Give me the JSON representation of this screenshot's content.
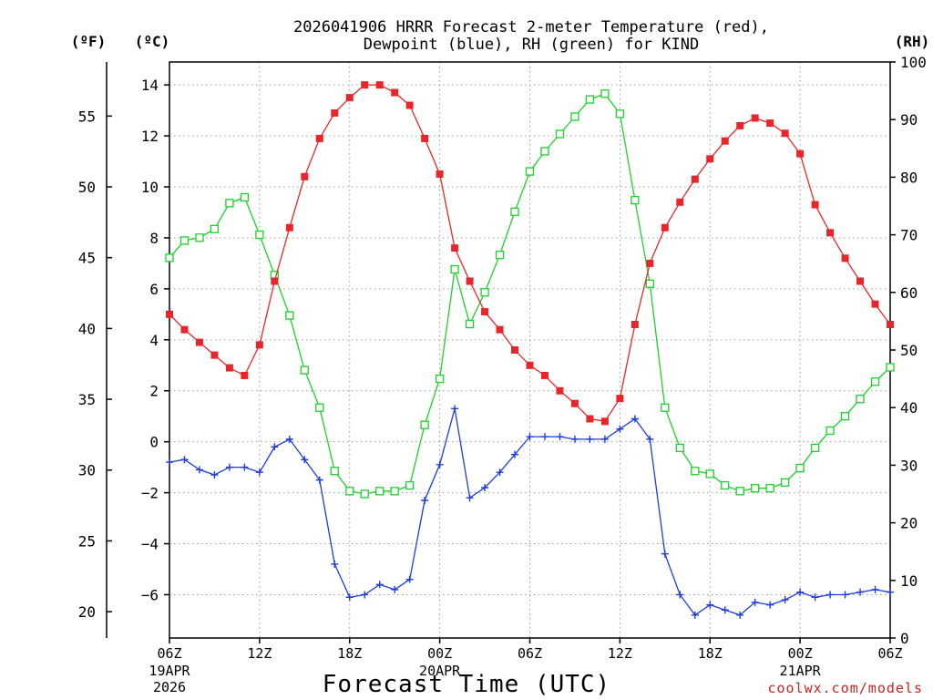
{
  "chart_data": {
    "type": "line",
    "title_lines": [
      "2026041906 HRRR Forecast 2-meter Temperature (red),",
      "Dewpoint (blue), RH (green) for KIND"
    ],
    "xlabel": "Forecast Time (UTC)",
    "credit": "coolwx.com/models",
    "units": {
      "fahrenheit": "(ºF)",
      "celsius": "(ºC)",
      "rh": "(RH)"
    },
    "x_range_hours": [
      0,
      48
    ],
    "x_ticks": [
      {
        "hour": 0,
        "label": "06Z",
        "date": [
          "19APR",
          "2026"
        ]
      },
      {
        "hour": 6,
        "label": "12Z",
        "date": []
      },
      {
        "hour": 12,
        "label": "18Z",
        "date": []
      },
      {
        "hour": 18,
        "label": "00Z",
        "date": [
          "20APR"
        ]
      },
      {
        "hour": 24,
        "label": "06Z",
        "date": []
      },
      {
        "hour": 30,
        "label": "12Z",
        "date": []
      },
      {
        "hour": 36,
        "label": "18Z",
        "date": []
      },
      {
        "hour": 42,
        "label": "00Z",
        "date": [
          "21APR"
        ]
      },
      {
        "hour": 48,
        "label": "06Z",
        "date": []
      }
    ],
    "c_range": [
      -7.7,
      14.9
    ],
    "c_ticks": [
      {
        "value": -6,
        "label": "−6"
      },
      {
        "value": -4,
        "label": "−4"
      },
      {
        "value": -2,
        "label": "−2"
      },
      {
        "value": 0,
        "label": "0"
      },
      {
        "value": 2,
        "label": "2"
      },
      {
        "value": 4,
        "label": "4"
      },
      {
        "value": 6,
        "label": "6"
      },
      {
        "value": 8,
        "label": "8"
      },
      {
        "value": 10,
        "label": "10"
      },
      {
        "value": 12,
        "label": "12"
      },
      {
        "value": 14,
        "label": "14"
      }
    ],
    "f_ticks": [
      {
        "value": 20,
        "label": "20"
      },
      {
        "value": 25,
        "label": "25"
      },
      {
        "value": 30,
        "label": "30"
      },
      {
        "value": 35,
        "label": "35"
      },
      {
        "value": 40,
        "label": "40"
      },
      {
        "value": 45,
        "label": "45"
      },
      {
        "value": 50,
        "label": "50"
      },
      {
        "value": 55,
        "label": "55"
      }
    ],
    "rh_range": [
      0,
      100
    ],
    "rh_ticks": [
      {
        "value": 0,
        "label": "0"
      },
      {
        "value": 10,
        "label": "10"
      },
      {
        "value": 20,
        "label": "20"
      },
      {
        "value": 30,
        "label": "30"
      },
      {
        "value": 40,
        "label": "40"
      },
      {
        "value": 50,
        "label": "50"
      },
      {
        "value": 60,
        "label": "60"
      },
      {
        "value": 70,
        "label": "70"
      },
      {
        "value": 80,
        "label": "80"
      },
      {
        "value": 90,
        "label": "90"
      },
      {
        "value": 100,
        "label": "100"
      }
    ],
    "series": [
      {
        "name": "2-meter Temperature",
        "axis": "celsius",
        "color": "#e8262a",
        "marker": "filled-square",
        "values": [
          5.0,
          4.4,
          3.9,
          3.4,
          2.9,
          2.6,
          3.8,
          6.3,
          8.4,
          10.4,
          11.9,
          12.9,
          13.5,
          14.0,
          14.0,
          13.7,
          13.2,
          11.9,
          10.5,
          7.6,
          6.3,
          5.1,
          4.4,
          3.6,
          3.0,
          2.6,
          2.0,
          1.5,
          0.9,
          0.8,
          1.7,
          4.6,
          7.0,
          8.4,
          9.4,
          10.3,
          11.1,
          11.8,
          12.4,
          12.7,
          12.5,
          12.1,
          11.3,
          9.3,
          8.2,
          7.2,
          6.3,
          5.4,
          4.6
        ]
      },
      {
        "name": "Dewpoint",
        "axis": "celsius",
        "color": "#1f3ce0",
        "marker": "plus",
        "values": [
          -0.8,
          -0.7,
          -1.1,
          -1.3,
          -1.0,
          -1.0,
          -1.2,
          -0.2,
          0.1,
          -0.7,
          -1.5,
          -4.8,
          -6.1,
          -6.0,
          -5.6,
          -5.8,
          -5.4,
          -2.3,
          -0.9,
          1.3,
          -2.2,
          -1.8,
          -1.2,
          -0.5,
          0.2,
          0.2,
          0.2,
          0.1,
          0.1,
          0.1,
          0.5,
          0.9,
          0.1,
          -4.4,
          -6.0,
          -6.8,
          -6.4,
          -6.6,
          -6.8,
          -6.3,
          -6.4,
          -6.2,
          -5.9,
          -6.1,
          -6.0,
          -6.0,
          -5.9,
          -5.8,
          -5.9
        ]
      },
      {
        "name": "RH",
        "axis": "rh",
        "color": "#1bd12b",
        "marker": "open-square",
        "values": [
          66,
          69,
          69.5,
          71,
          75.5,
          76.5,
          70,
          63,
          56,
          46.5,
          40,
          29,
          25.5,
          25,
          25.5,
          25.5,
          26.5,
          37,
          45,
          64,
          54.5,
          60,
          66.5,
          74,
          81,
          84.5,
          87.5,
          90.5,
          93.5,
          94.5,
          91,
          76,
          61.5,
          40,
          33,
          29,
          28.5,
          26.5,
          25.5,
          26,
          26,
          27,
          29.5,
          33,
          36,
          38.5,
          41.5,
          44.5,
          47
        ]
      }
    ]
  }
}
